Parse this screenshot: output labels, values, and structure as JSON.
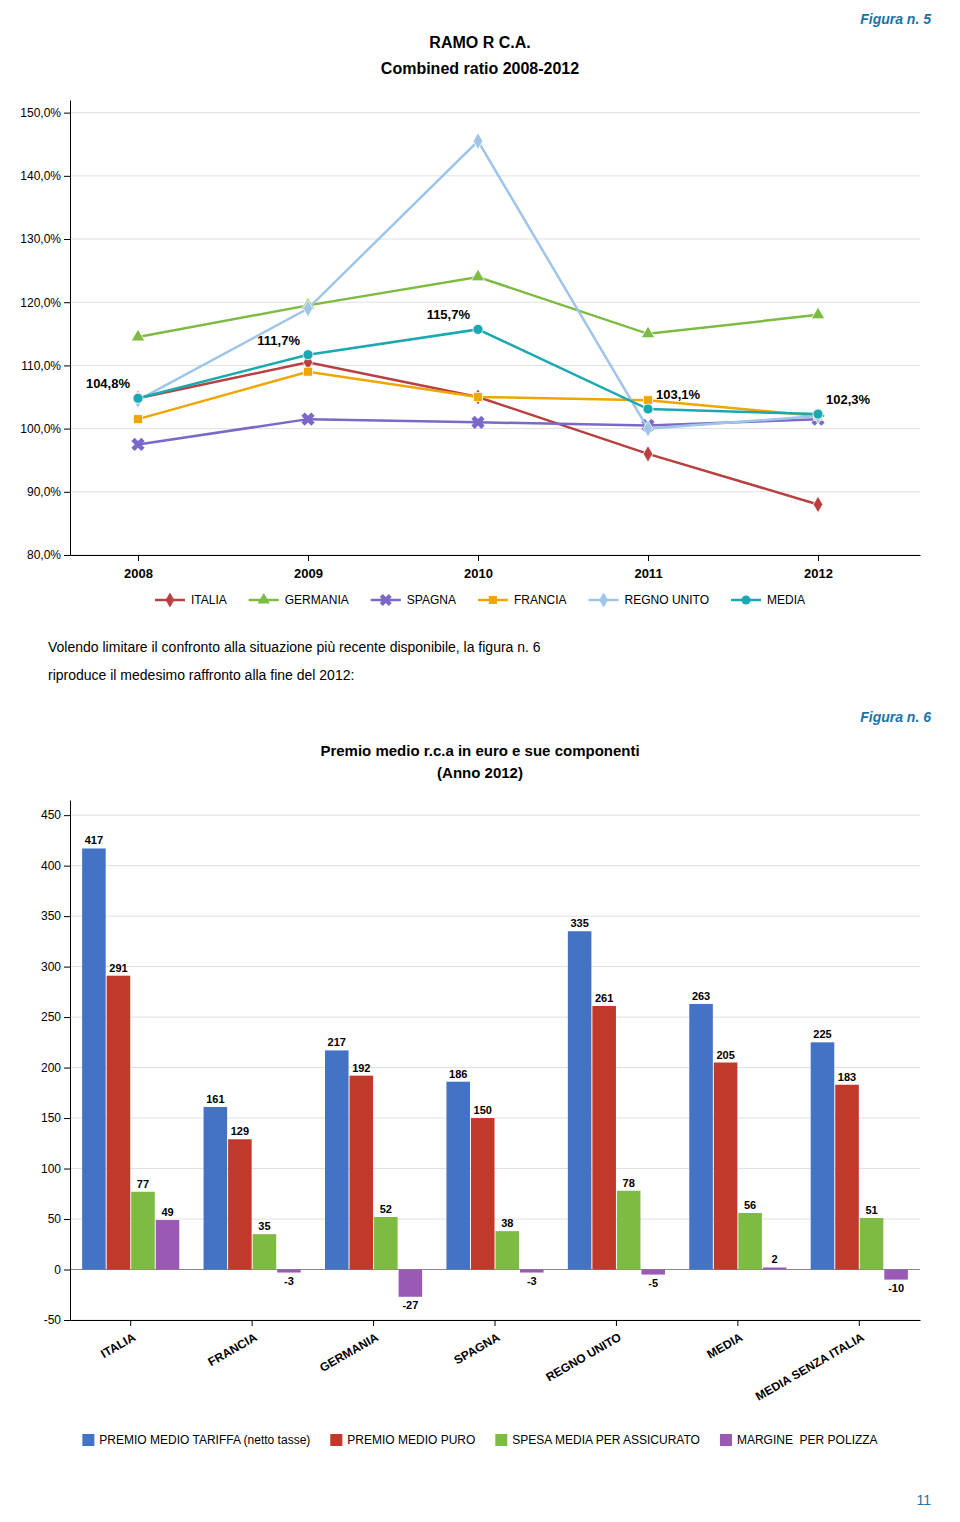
{
  "chart_data": [
    {
      "type": "line",
      "title": "RAMO R C.A.",
      "subtitle": "Combined ratio 2008-2012",
      "annotations": [
        "Figura n. 5"
      ],
      "x": [
        2008,
        2009,
        2010,
        2011,
        2012
      ],
      "xlim": [
        2007.6,
        2012.6
      ],
      "xticks": [
        2008,
        2009,
        2010,
        2011,
        2012
      ],
      "ylim": [
        80,
        152
      ],
      "yticks": [
        {
          "value": 80,
          "label": "80,0%"
        },
        {
          "value": 90,
          "label": "90,0%"
        },
        {
          "value": 100,
          "label": "100,0%"
        },
        {
          "value": 110,
          "label": "110,0%"
        },
        {
          "value": 120,
          "label": "120,0%"
        },
        {
          "value": 130,
          "label": "130,0%"
        },
        {
          "value": 140,
          "label": "140,0%"
        },
        {
          "value": 150,
          "label": "150,0%"
        }
      ],
      "grid": true,
      "legend": "bottom",
      "series": [
        {
          "name": "ITALIA",
          "color": "#b94040",
          "marker": "diamond",
          "values": [
            104.8,
            110.5,
            105.0,
            96.0,
            88.0
          ]
        },
        {
          "name": "GERMANIA",
          "color": "#7dbb42",
          "marker": "triangle",
          "values": [
            114.5,
            119.5,
            124.0,
            115.0,
            118.0
          ]
        },
        {
          "name": "SPAGNA",
          "color": "#7b68c8",
          "marker": "x",
          "values": [
            97.5,
            101.5,
            101.0,
            100.5,
            101.5
          ]
        },
        {
          "name": "FRANCIA",
          "color": "#f0a500",
          "marker": "square",
          "values": [
            101.5,
            109.0,
            105.0,
            104.5,
            102.0
          ]
        },
        {
          "name": "REGNO UNITO",
          "color": "#9fc5e8",
          "marker": "diamond",
          "values": [
            104.5,
            119.0,
            145.5,
            100.0,
            102.0
          ]
        },
        {
          "name": "MEDIA",
          "color": "#1aa9b0",
          "marker": "circle",
          "values": [
            104.8,
            111.7,
            115.7,
            103.1,
            102.3
          ],
          "data_labels": true,
          "value_labels": [
            "104,8%",
            "111,7%",
            "115,7%",
            "103,1%",
            "102,3%"
          ]
        }
      ]
    },
    {
      "type": "bar",
      "title": "Premio medio r.c.a in euro e sue componenti",
      "subtitle": "(Anno 2012)",
      "annotations": [
        "Volendo limitare il confronto alla situazione più recente disponibile, la figura n. 6",
        "riproduce il medesimo raffronto alla fine del 2012:",
        "Figura n. 6",
        "11"
      ],
      "categories": [
        "ITALIA",
        "FRANCIA",
        "GERMANIA",
        "SPAGNA",
        "REGNO UNITO",
        "MEDIA",
        "MEDIA SENZA ITALIA"
      ],
      "ylim": [
        -50,
        465
      ],
      "yticks": [
        -50,
        0,
        50,
        100,
        150,
        200,
        250,
        300,
        350,
        400,
        450
      ],
      "grid": true,
      "legend": "bottom",
      "data_labels": true,
      "series": [
        {
          "name": "PREMIO MEDIO TARIFFA (netto tasse)",
          "color": "#4472c4",
          "values": [
            417,
            161,
            217,
            186,
            335,
            263,
            225
          ]
        },
        {
          "name": "PREMIO MEDIO PURO",
          "color": "#c0392b",
          "values": [
            291,
            129,
            192,
            150,
            261,
            205,
            183
          ]
        },
        {
          "name": "SPESA MEDIA PER ASSICURATO",
          "color": "#7dbb42",
          "values": [
            77,
            35,
            52,
            38,
            78,
            56,
            51
          ]
        },
        {
          "name": "MARGINE  PER POLIZZA",
          "color": "#9b59b6",
          "values": [
            49,
            -3,
            -27,
            -3,
            -5,
            2,
            -10
          ]
        }
      ]
    }
  ]
}
